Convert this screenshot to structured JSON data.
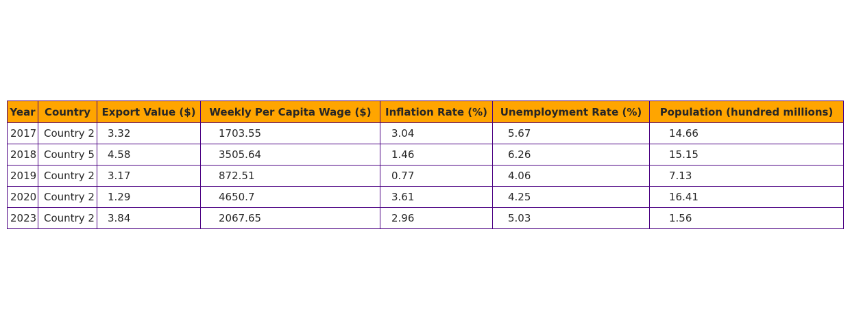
{
  "chart_data": {
    "type": "table",
    "columns": [
      "Year",
      "Country",
      "Export Value ($)",
      "Weekly Per Capita Wage ($)",
      "Inflation Rate (%)",
      "Unemployment Rate (%)",
      "Population (hundred millions)"
    ],
    "rows": [
      [
        "2017",
        "Country 2",
        "3.32",
        "1703.55",
        "3.04",
        "5.67",
        "14.66"
      ],
      [
        "2018",
        "Country 5",
        "4.58",
        "3505.64",
        "1.46",
        "6.26",
        "15.15"
      ],
      [
        "2019",
        "Country 2",
        "3.17",
        "872.51",
        "0.77",
        "4.06",
        "7.13"
      ],
      [
        "2020",
        "Country 2",
        "1.29",
        "4650.7",
        "3.61",
        "4.25",
        "16.41"
      ],
      [
        "2023",
        "Country 2",
        "3.84",
        "2067.65",
        "2.96",
        "5.03",
        "1.56"
      ]
    ],
    "header_color": "#ffa500",
    "border_color": "#4b0082"
  }
}
